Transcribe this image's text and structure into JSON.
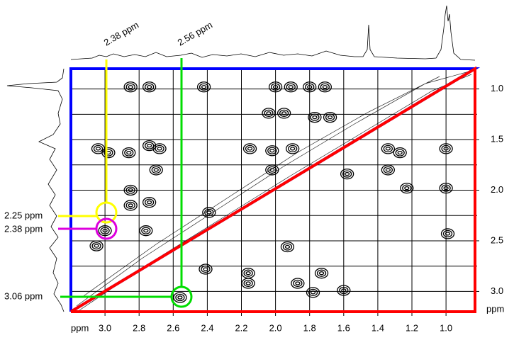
{
  "chart_data": {
    "type": "contour",
    "x_label": "ppm",
    "y_label": "ppm",
    "xlim": [
      3.2,
      0.83
    ],
    "ylim": [
      0.8,
      3.2
    ],
    "xticks": [
      {
        "value": 3,
        "label": "3.0"
      },
      2.8,
      2.6,
      2.4,
      2.2,
      {
        "value": 2,
        "label": "2.0"
      },
      1.8,
      1.6,
      1.4,
      1.2,
      {
        "value": 1,
        "label": "1.0"
      }
    ],
    "yticks": [
      {
        "value": 1,
        "label": "1.0"
      },
      1.5,
      {
        "value": 2,
        "label": "2.0"
      },
      2.5,
      {
        "value": 3,
        "label": "3.0"
      }
    ],
    "y_minor_ticks": [
      1.25,
      1.75,
      2.25,
      2.75
    ],
    "grid": true,
    "color": "#000000",
    "x": [
      2.85,
      2.74,
      2.42,
      2.0,
      1.91,
      1.8,
      1.71,
      2.04,
      1.95,
      1.77,
      1.68,
      3.04,
      2.98,
      2.86,
      2.74,
      2.68,
      2.15,
      2.02,
      1.9,
      1.34,
      1.27,
      1.0,
      2.7,
      2.02,
      1.58,
      1.34,
      1.23,
      1.0,
      2.85,
      2.85,
      2.74,
      2.39,
      3.0,
      2.76,
      0.99,
      3.05,
      1.93,
      2.41,
      2.16,
      1.73,
      1.6,
      1.87,
      2.16,
      1.78,
      2.56
    ],
    "values": [
      0.98,
      0.98,
      0.98,
      0.98,
      0.98,
      0.98,
      0.98,
      1.24,
      1.24,
      1.28,
      1.28,
      1.59,
      1.63,
      1.63,
      1.56,
      1.59,
      1.59,
      1.61,
      1.59,
      1.59,
      1.63,
      1.59,
      1.8,
      1.8,
      1.84,
      1.8,
      1.98,
      1.98,
      2.0,
      2.15,
      2.12,
      2.22,
      2.4,
      2.4,
      2.43,
      2.55,
      2.56,
      2.78,
      2.82,
      2.82,
      2.99,
      2.92,
      2.92,
      3.01,
      3.06
    ],
    "annotations": [
      {
        "text": "2.38 ppm",
        "color": "#ffff00"
      },
      {
        "text": "2.56 ppm",
        "color": "#00dd00"
      },
      {
        "text": "2.25 ppm",
        "color": "#ffff00"
      },
      {
        "text": "2.38 ppm",
        "color": "#dd00dd"
      },
      {
        "text": "3.06 ppm",
        "color": "#00dd00"
      }
    ],
    "upper_color": "#0000ff",
    "lower_color": "#ff0000"
  }
}
